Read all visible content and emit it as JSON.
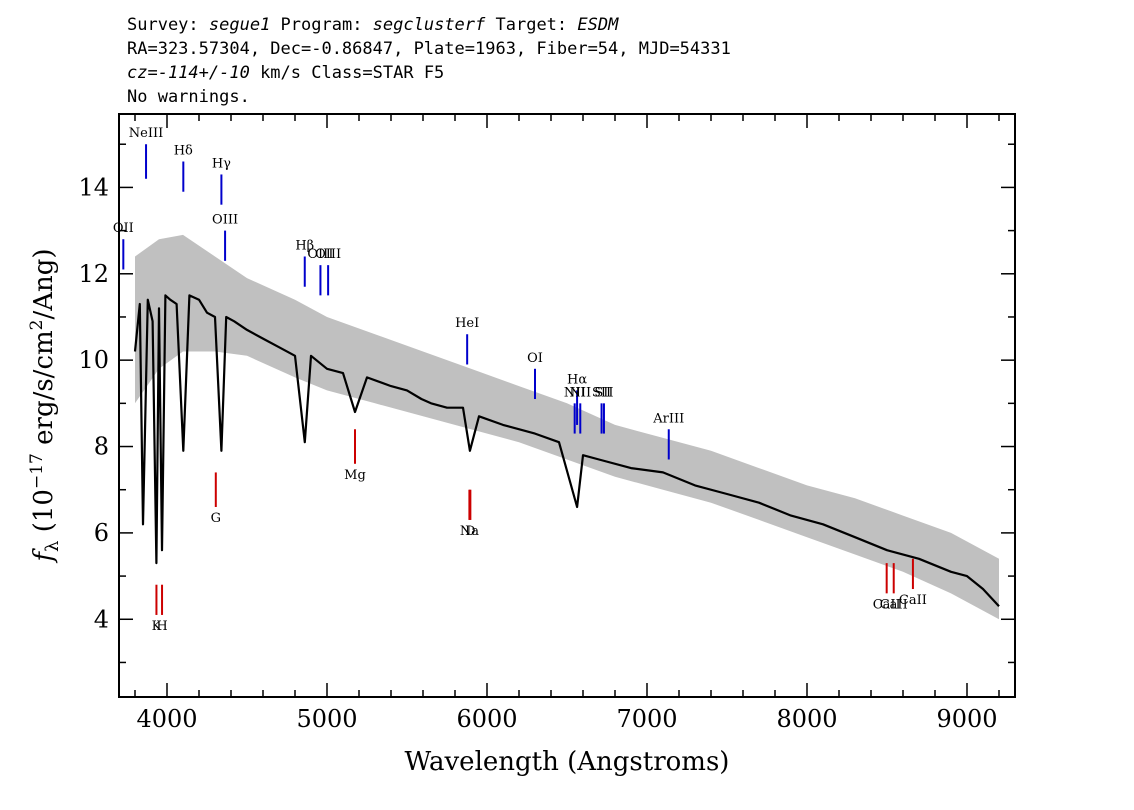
{
  "header": {
    "line1": [
      {
        "t": "Survey: ",
        "i": false
      },
      {
        "t": "segue1",
        "i": true
      },
      {
        "t": " Program: ",
        "i": false
      },
      {
        "t": "segclusterf",
        "i": true
      },
      {
        "t": " Target: ",
        "i": false
      },
      {
        "t": "ESDM",
        "i": true
      }
    ],
    "line2": "RA=323.57304, Dec=-0.86847, Plate=1963, Fiber=54, MJD=54331",
    "line3": [
      {
        "t": "cz=-114+/-10",
        "i": true
      },
      {
        "t": " km/s Class=STAR F5",
        "i": false
      }
    ],
    "line4": "No warnings."
  },
  "chart_data": {
    "type": "line",
    "xlabel": "Wavelength (Angstroms)",
    "ylabel_parts": [
      "f",
      "λ",
      " (10",
      "−17",
      " erg/s/cm",
      "2",
      "/Ang)"
    ],
    "xlim": [
      3700,
      9300
    ],
    "ylim": [
      2.2,
      15.7
    ],
    "x_ticks": [
      4000,
      5000,
      6000,
      7000,
      8000,
      9000
    ],
    "x_tick_labels": [
      "4000",
      "5000",
      "6000",
      "7000",
      "8000",
      "9000"
    ],
    "x_minor_step": 200,
    "y_ticks": [
      4,
      6,
      8,
      10,
      12,
      14
    ],
    "y_tick_labels": [
      "4",
      "6",
      "8",
      "10",
      "12",
      "14"
    ],
    "y_minor_step": 1,
    "series": [
      {
        "kind": "flux",
        "color": "#000000",
        "x": [
          3800,
          3830,
          3850,
          3880,
          3910,
          3934,
          3950,
          3969,
          3990,
          4020,
          4060,
          4102,
          4140,
          4200,
          4250,
          4300,
          4340,
          4370,
          4420,
          4500,
          4600,
          4700,
          4800,
          4861,
          4900,
          5000,
          5100,
          5175,
          5250,
          5400,
          5500,
          5590,
          5650,
          5750,
          5850,
          5893,
          5950,
          6100,
          6300,
          6450,
          6563,
          6600,
          6700,
          6900,
          7100,
          7300,
          7500,
          7700,
          7900,
          8100,
          8300,
          8500,
          8700,
          8900,
          9000,
          9100,
          9200
        ],
        "y": [
          10.2,
          11.3,
          6.2,
          11.4,
          10.9,
          5.3,
          11.2,
          5.6,
          11.5,
          11.4,
          11.3,
          7.9,
          11.5,
          11.4,
          11.1,
          11.0,
          7.9,
          11.0,
          10.9,
          10.7,
          10.5,
          10.3,
          10.1,
          8.1,
          10.1,
          9.8,
          9.7,
          8.8,
          9.6,
          9.4,
          9.3,
          9.1,
          9.0,
          8.9,
          8.9,
          7.9,
          8.7,
          8.5,
          8.3,
          8.1,
          6.6,
          7.8,
          7.7,
          7.5,
          7.4,
          7.1,
          6.9,
          6.7,
          6.4,
          6.2,
          5.9,
          5.6,
          5.4,
          5.1,
          5.0,
          4.7,
          4.3
        ]
      },
      {
        "kind": "error-envelope",
        "color": "#c0c0c0",
        "x": [
          3800,
          3950,
          4100,
          4300,
          4500,
          4800,
          5000,
          5300,
          5600,
          5900,
          6200,
          6500,
          6800,
          7100,
          7400,
          7700,
          8000,
          8300,
          8600,
          8900,
          9200
        ],
        "y_low": [
          9.0,
          9.8,
          10.2,
          10.2,
          10.1,
          9.6,
          9.3,
          9.0,
          8.7,
          8.4,
          8.1,
          7.7,
          7.3,
          7.0,
          6.7,
          6.3,
          5.9,
          5.5,
          5.1,
          4.6,
          4.0
        ],
        "y_high": [
          12.4,
          12.8,
          12.9,
          12.4,
          11.9,
          11.4,
          11.0,
          10.6,
          10.2,
          9.8,
          9.4,
          9.0,
          8.5,
          8.2,
          7.9,
          7.5,
          7.1,
          6.8,
          6.4,
          6.0,
          5.4
        ]
      }
    ],
    "emission_lines": [
      {
        "label": "NeIII",
        "x": 3869,
        "y1": 14.2,
        "y2": 15.0
      },
      {
        "label": "Hδ",
        "x": 4102,
        "y1": 13.9,
        "y2": 14.6
      },
      {
        "label": "Hγ",
        "x": 4340,
        "y1": 13.6,
        "y2": 14.3
      },
      {
        "label": "OIII",
        "x": 4363,
        "y1": 12.3,
        "y2": 13.0
      },
      {
        "label": "Hβ",
        "x": 4861,
        "y1": 11.7,
        "y2": 12.4
      },
      {
        "label": "OIII",
        "x": 4959,
        "y1": 11.5,
        "y2": 12.2
      },
      {
        "label": "OIII",
        "x": 5007,
        "y1": 11.5,
        "y2": 12.2
      },
      {
        "label": "OII",
        "x": 3727,
        "y1": 12.1,
        "y2": 12.8
      },
      {
        "label": "HeI",
        "x": 5876,
        "y1": 9.9,
        "y2": 10.6
      },
      {
        "label": "OI",
        "x": 6300,
        "y1": 9.1,
        "y2": 9.8
      },
      {
        "label": "Hα",
        "x": 6563,
        "y1": 8.5,
        "y2": 9.3
      },
      {
        "label": "NII",
        "x": 6548,
        "y1": 8.3,
        "y2": 9.0
      },
      {
        "label": "NII",
        "x": 6583,
        "y1": 8.3,
        "y2": 9.0
      },
      {
        "label": "SII",
        "x": 6716,
        "y1": 8.3,
        "y2": 9.0
      },
      {
        "label": "SII",
        "x": 6731,
        "y1": 8.3,
        "y2": 9.0
      },
      {
        "label": "ArIII",
        "x": 7136,
        "y1": 7.7,
        "y2": 8.4
      }
    ],
    "absorption_lines": [
      {
        "label": "K",
        "x": 3934,
        "y1": 4.1,
        "y2": 4.8
      },
      {
        "label": "H",
        "x": 3969,
        "y1": 4.1,
        "y2": 4.8
      },
      {
        "label": "G",
        "x": 4305,
        "y1": 6.6,
        "y2": 7.4
      },
      {
        "label": "Mg",
        "x": 5175,
        "y1": 7.6,
        "y2": 8.4
      },
      {
        "label": "Na",
        "x": 5890,
        "y1": 6.3,
        "y2": 7.0
      },
      {
        "label": "D",
        "x": 5896,
        "y1": 6.3,
        "y2": 7.0
      },
      {
        "label": "CaII",
        "x": 8498,
        "y1": 4.6,
        "y2": 5.3
      },
      {
        "label": "CaII",
        "x": 8542,
        "y1": 4.6,
        "y2": 5.3
      },
      {
        "label": "CaII",
        "x": 8662,
        "y1": 4.7,
        "y2": 5.4
      }
    ],
    "emission_color": "#0000cc",
    "absorption_color": "#cc0000",
    "grid": false,
    "legend": "none"
  }
}
